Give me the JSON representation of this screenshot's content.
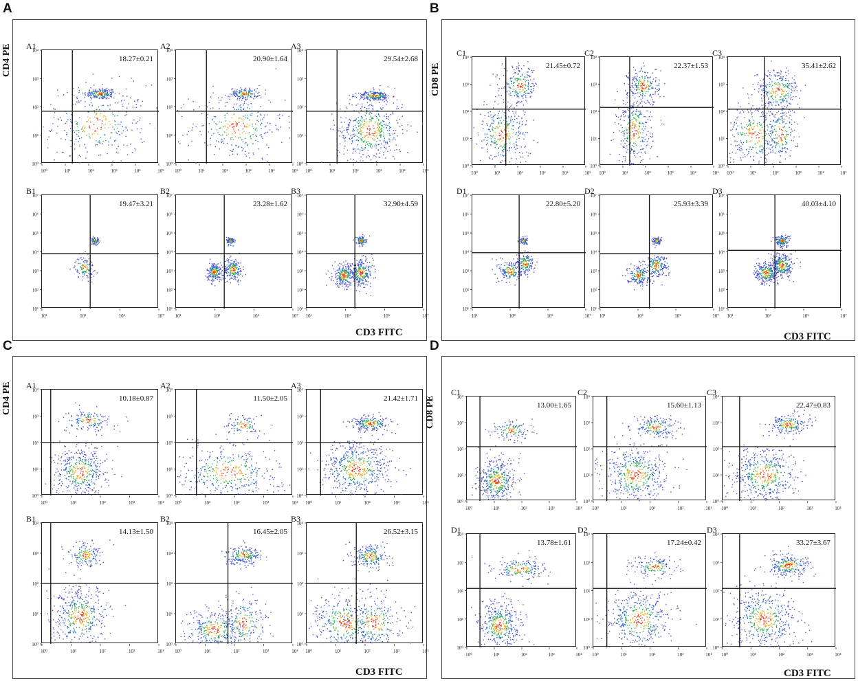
{
  "figure": {
    "panels": [
      {
        "letter": "A",
        "ylabel": "CD4 PE",
        "xlabel": "CD3 FITC",
        "scale": "small"
      },
      {
        "letter": "B",
        "ylabel": "CD8 PE",
        "xlabel": "CD3 FITC",
        "scale": "large"
      },
      {
        "letter": "C",
        "ylabel": "CD4 PE",
        "xlabel": "CD3 FITC",
        "scale": "small"
      },
      {
        "letter": "D",
        "ylabel": "CD8 PE",
        "xlabel": "CD3 FITC",
        "scale": "small"
      }
    ]
  },
  "chart_data": [
    {
      "panel": "A",
      "type": "scatter",
      "title": "A1",
      "xlabel": "CD3 FITC",
      "ylabel": "CD4 PE",
      "xlim": [
        1,
        100000
      ],
      "ylim": [
        1,
        10000
      ],
      "x_ticks": [
        "10⁰",
        "10¹",
        "10²",
        "10³",
        "10⁴",
        "10⁵"
      ],
      "y_ticks": [
        "10⁰",
        "10¹",
        "10²",
        "10³",
        "10⁴"
      ],
      "gate": {
        "x": 20,
        "y": 70
      },
      "quadrant_percent": "18.27±0.21",
      "clusters": [
        [
          300,
          300,
          0.35,
          0.1,
          170
        ],
        [
          200,
          25,
          1.1,
          0.7,
          320
        ]
      ]
    },
    {
      "panel": "A",
      "type": "scatter",
      "title": "A2",
      "xlabel": "CD3 FITC",
      "ylabel": "CD4 PE",
      "xlim": [
        1,
        100000
      ],
      "ylim": [
        1,
        10000
      ],
      "x_ticks": [
        "10⁰",
        "10¹",
        "10²",
        "10³",
        "10⁴",
        "10⁵"
      ],
      "y_ticks": [
        "10⁰",
        "10¹",
        "10²",
        "10³",
        "10⁴"
      ],
      "gate": {
        "x": 20,
        "y": 70
      },
      "quadrant_percent": "20.90±1.64",
      "clusters": [
        [
          800,
          300,
          0.3,
          0.1,
          140
        ],
        [
          400,
          20,
          1.0,
          0.6,
          300
        ]
      ]
    },
    {
      "panel": "A",
      "type": "scatter",
      "title": "A3",
      "xlabel": "CD3 FITC",
      "ylabel": "CD4 PE",
      "xlim": [
        1,
        100000
      ],
      "ylim": [
        1,
        10000
      ],
      "x_ticks": [
        "10⁰",
        "10¹",
        "10²",
        "10³",
        "10⁴",
        "10⁵"
      ],
      "y_ticks": [
        "10⁰",
        "10¹",
        "10²",
        "10³",
        "10⁴"
      ],
      "gate": {
        "x": 20,
        "y": 70
      },
      "quadrant_percent": "29.54±2.68",
      "clusters": [
        [
          800,
          250,
          0.35,
          0.08,
          220
        ],
        [
          500,
          15,
          0.7,
          0.6,
          480
        ]
      ]
    },
    {
      "panel": "A",
      "type": "scatter",
      "title": "B1",
      "xlabel": "CD3 FITC",
      "ylabel": "CD4 PE",
      "xlim": [
        10,
        10000000
      ],
      "ylim": [
        10,
        10000000
      ],
      "x_ticks": [
        "10¹",
        "10³",
        "10⁵",
        "10⁷"
      ],
      "y_ticks": [
        "10¹",
        "10²",
        "10³",
        "10⁴",
        "10⁵",
        "10⁶",
        "10⁷"
      ],
      "gate": {
        "x": 3000,
        "y": 8000
      },
      "quadrant_percent": "19.47±3.21",
      "clusters": [
        [
          5000,
          40000,
          0.1,
          0.1,
          70
        ],
        [
          1500,
          1500,
          0.25,
          0.3,
          110
        ]
      ]
    },
    {
      "panel": "A",
      "type": "scatter",
      "title": "B2",
      "xlabel": "CD3 FITC",
      "ylabel": "CD4 PE",
      "xlim": [
        10,
        10000000
      ],
      "ylim": [
        10,
        10000000
      ],
      "x_ticks": [
        "10¹",
        "10³",
        "10⁵",
        "10⁷"
      ],
      "y_ticks": [
        "10¹",
        "10²",
        "10³",
        "10⁴",
        "10⁵",
        "10⁶",
        "10⁷"
      ],
      "gate": {
        "x": 3000,
        "y": 8000
      },
      "quadrant_percent": "23.28±1.62",
      "clusters": [
        [
          6000,
          40000,
          0.1,
          0.1,
          90
        ],
        [
          900,
          900,
          0.2,
          0.25,
          200
        ],
        [
          8000,
          1200,
          0.25,
          0.3,
          200
        ]
      ]
    },
    {
      "panel": "A",
      "type": "scatter",
      "title": "B3",
      "xlabel": "CD3 FITC",
      "ylabel": "CD4 PE",
      "xlim": [
        10,
        10000000
      ],
      "ylim": [
        10,
        10000000
      ],
      "x_ticks": [
        "10¹",
        "10³",
        "10⁵",
        "10⁷"
      ],
      "y_ticks": [
        "10¹",
        "10²",
        "10³",
        "10⁴",
        "10⁵",
        "10⁶",
        "10⁷"
      ],
      "gate": {
        "x": 3000,
        "y": 8000
      },
      "quadrant_percent": "32.90±4.59",
      "clusters": [
        [
          6000,
          40000,
          0.12,
          0.12,
          120
        ],
        [
          800,
          600,
          0.3,
          0.3,
          260
        ],
        [
          6000,
          800,
          0.3,
          0.35,
          260
        ]
      ]
    },
    {
      "panel": "B",
      "type": "scatter",
      "title": "C1",
      "xlabel": "CD3 FITC",
      "ylabel": "CD8 PE",
      "xlim": [
        1,
        100000
      ],
      "ylim": [
        1,
        10000
      ],
      "x_ticks": [
        "10⁰",
        "10¹",
        "10²",
        "10³",
        "10⁴",
        "10⁵"
      ],
      "y_ticks": [
        "10⁰",
        "10¹",
        "10²",
        "10³",
        "10⁴"
      ],
      "gate": {
        "x": 30,
        "y": 120
      },
      "quadrant_percent": "21.45±0.72",
      "clusters": [
        [
          120,
          900,
          0.4,
          0.35,
          200
        ],
        [
          20,
          15,
          0.6,
          0.6,
          320
        ]
      ]
    },
    {
      "panel": "B",
      "type": "scatter",
      "title": "C2",
      "xlabel": "CD3 FITC",
      "ylabel": "CD8 PE",
      "xlim": [
        1,
        100000
      ],
      "ylim": [
        1,
        10000
      ],
      "x_ticks": [
        "10⁰",
        "10¹",
        "10²",
        "10³",
        "10⁴",
        "10⁵"
      ],
      "y_ticks": [
        "10⁰",
        "10¹",
        "10²",
        "10³",
        "10⁴"
      ],
      "gate": {
        "x": 20,
        "y": 140
      },
      "quadrant_percent": "22.37±1.53",
      "clusters": [
        [
          80,
          900,
          0.35,
          0.35,
          200
        ],
        [
          30,
          20,
          0.4,
          0.7,
          320
        ]
      ]
    },
    {
      "panel": "B",
      "type": "scatter",
      "title": "C3",
      "xlabel": "CD3 FITC",
      "ylabel": "CD8 PE",
      "xlim": [
        1,
        100000
      ],
      "ylim": [
        1,
        10000
      ],
      "x_ticks": [
        "10⁰",
        "10¹",
        "10²",
        "10³",
        "10⁴",
        "10⁵"
      ],
      "y_ticks": [
        "10⁰",
        "10¹",
        "10²",
        "10³",
        "10⁴"
      ],
      "gate": {
        "x": 40,
        "y": 120
      },
      "quadrant_percent": "35.41±2.62",
      "clusters": [
        [
          150,
          600,
          0.5,
          0.4,
          260
        ],
        [
          15,
          15,
          0.7,
          0.6,
          320
        ],
        [
          200,
          15,
          0.35,
          0.6,
          150
        ]
      ]
    },
    {
      "panel": "B",
      "type": "scatter",
      "title": "D1",
      "xlabel": "CD3 FITC",
      "ylabel": "CD8 PE",
      "xlim": [
        10,
        10000000
      ],
      "ylim": [
        10,
        10000000
      ],
      "x_ticks": [
        "10¹",
        "10³",
        "10⁵",
        "10⁷"
      ],
      "y_ticks": [
        "10¹",
        "10²",
        "10³",
        "10⁴",
        "10⁵",
        "10⁶",
        "10⁷"
      ],
      "gate": {
        "x": 3000,
        "y": 9000
      },
      "quadrant_percent": "22.80±5.20",
      "clusters": [
        [
          5000,
          40000,
          0.1,
          0.1,
          80
        ],
        [
          1000,
          1000,
          0.3,
          0.3,
          160
        ],
        [
          6000,
          2500,
          0.25,
          0.3,
          160
        ]
      ]
    },
    {
      "panel": "B",
      "type": "scatter",
      "title": "D2",
      "xlabel": "CD3 FITC",
      "ylabel": "CD8 PE",
      "xlim": [
        10,
        10000000
      ],
      "ylim": [
        10,
        10000000
      ],
      "x_ticks": [
        "10¹",
        "10³",
        "10⁵",
        "10⁷"
      ],
      "y_ticks": [
        "10¹",
        "10²",
        "10³",
        "10⁴",
        "10⁵",
        "10⁶",
        "10⁷"
      ],
      "gate": {
        "x": 4000,
        "y": 8000
      },
      "quadrant_percent": "25.93±3.39",
      "clusters": [
        [
          9000,
          40000,
          0.1,
          0.1,
          90
        ],
        [
          1000,
          600,
          0.3,
          0.25,
          180
        ],
        [
          9000,
          2000,
          0.3,
          0.3,
          180
        ]
      ]
    },
    {
      "panel": "B",
      "type": "scatter",
      "title": "D3",
      "xlabel": "CD3 FITC",
      "ylabel": "CD8 PE",
      "xlim": [
        10,
        10000000
      ],
      "ylim": [
        10,
        10000000
      ],
      "x_ticks": [
        "10¹",
        "10³",
        "10⁵",
        "10⁷"
      ],
      "y_ticks": [
        "10¹",
        "10²",
        "10³",
        "10⁴",
        "10⁵",
        "10⁶",
        "10⁷"
      ],
      "gate": {
        "x": 3000,
        "y": 12000
      },
      "quadrant_percent": "40.03±4.10",
      "clusters": [
        [
          7000,
          40000,
          0.2,
          0.15,
          150
        ],
        [
          1000,
          800,
          0.3,
          0.3,
          250
        ],
        [
          7000,
          2000,
          0.3,
          0.35,
          260
        ]
      ]
    },
    {
      "panel": "C",
      "type": "scatter",
      "title": "A1",
      "xlabel": "CD3 FITC",
      "ylabel": "CD4 PE",
      "xlim": [
        1,
        10000
      ],
      "ylim": [
        1,
        10000
      ],
      "x_ticks": [
        "10⁰",
        "10¹",
        "10²",
        "10³",
        "10⁴"
      ],
      "y_ticks": [
        "10⁰",
        "10¹",
        "10²",
        "10³",
        "10⁴"
      ],
      "gate": {
        "x": 2,
        "y": 100
      },
      "quadrant_percent": "10.18±0.87",
      "clusters": [
        [
          40,
          700,
          0.4,
          0.2,
          140
        ],
        [
          20,
          8,
          0.45,
          0.5,
          420
        ]
      ]
    },
    {
      "panel": "C",
      "type": "scatter",
      "title": "A2",
      "xlabel": "CD3 FITC",
      "ylabel": "CD4 PE",
      "xlim": [
        1,
        10000
      ],
      "ylim": [
        1,
        10000
      ],
      "x_ticks": [
        "10⁰",
        "10¹",
        "10²",
        "10³",
        "10⁴"
      ],
      "y_ticks": [
        "10⁰",
        "10¹",
        "10²",
        "10³",
        "10⁴"
      ],
      "gate": {
        "x": 5,
        "y": 100
      },
      "quadrant_percent": "11.50±2.05",
      "clusters": [
        [
          200,
          450,
          0.3,
          0.2,
          90
        ],
        [
          60,
          8,
          0.9,
          0.55,
          400
        ]
      ]
    },
    {
      "panel": "C",
      "type": "scatter",
      "title": "A3",
      "xlabel": "CD3 FITC",
      "ylabel": "CD4 PE",
      "xlim": [
        1,
        10000
      ],
      "ylim": [
        1,
        10000
      ],
      "x_ticks": [
        "10⁰",
        "10¹",
        "10²",
        "10³",
        "10⁴"
      ],
      "y_ticks": [
        "10⁰",
        "10¹",
        "10²",
        "10³",
        "10⁴"
      ],
      "gate": {
        "x": 3,
        "y": 100
      },
      "quadrant_percent": "21.42±1.71",
      "clusters": [
        [
          150,
          550,
          0.35,
          0.15,
          200
        ],
        [
          50,
          10,
          0.6,
          0.55,
          520
        ]
      ]
    },
    {
      "panel": "C",
      "type": "scatter",
      "title": "B1",
      "xlabel": "CD3 FITC",
      "ylabel": "CD4 PE",
      "xlim": [
        1,
        10000
      ],
      "ylim": [
        1,
        10000
      ],
      "x_ticks": [
        "10⁰",
        "10¹",
        "10²",
        "10³",
        "10⁴"
      ],
      "y_ticks": [
        "10⁰",
        "10¹",
        "10²",
        "10³",
        "10⁴"
      ],
      "gate": {
        "x": 2,
        "y": 100
      },
      "quadrant_percent": "14.13±1.50",
      "clusters": [
        [
          30,
          900,
          0.3,
          0.2,
          150
        ],
        [
          20,
          8,
          0.5,
          0.5,
          420
        ]
      ]
    },
    {
      "panel": "C",
      "type": "scatter",
      "title": "B2",
      "xlabel": "CD3 FITC",
      "ylabel": "CD4 PE",
      "xlim": [
        1,
        10000
      ],
      "ylim": [
        1,
        10000
      ],
      "x_ticks": [
        "10⁰",
        "10¹",
        "10²",
        "10³",
        "10⁴"
      ],
      "y_ticks": [
        "10⁰",
        "10¹",
        "10²",
        "10³",
        "10⁴"
      ],
      "gate": {
        "x": 60,
        "y": 100
      },
      "quadrant_percent": "16.45±2.05",
      "clusters": [
        [
          200,
          900,
          0.3,
          0.15,
          200
        ],
        [
          20,
          3,
          0.5,
          0.35,
          300
        ],
        [
          200,
          5,
          0.4,
          0.45,
          200
        ]
      ]
    },
    {
      "panel": "C",
      "type": "scatter",
      "title": "B3",
      "xlabel": "CD3 FITC",
      "ylabel": "CD4 PE",
      "xlim": [
        1,
        10000
      ],
      "ylim": [
        1,
        10000
      ],
      "x_ticks": [
        "10⁰",
        "10¹",
        "10²",
        "10³",
        "10⁴"
      ],
      "y_ticks": [
        "10⁰",
        "10¹",
        "10²",
        "10³",
        "10⁴"
      ],
      "gate": {
        "x": 50,
        "y": 100
      },
      "quadrant_percent": "26.52±3.15",
      "clusters": [
        [
          150,
          800,
          0.3,
          0.2,
          200
        ],
        [
          20,
          5,
          0.6,
          0.5,
          350
        ],
        [
          200,
          5,
          0.5,
          0.5,
          250
        ]
      ]
    },
    {
      "panel": "D",
      "type": "scatter",
      "title": "C1",
      "xlabel": "CD3 FITC",
      "ylabel": "CD8 PE",
      "xlim": [
        1,
        10000
      ],
      "ylim": [
        1,
        10000
      ],
      "x_ticks": [
        "10⁰",
        "10¹",
        "10²",
        "10³",
        "10⁴"
      ],
      "y_ticks": [
        "10⁰",
        "10¹",
        "10²",
        "10³",
        "10⁴"
      ],
      "gate": {
        "x": 3,
        "y": 120
      },
      "quadrant_percent": "13.00±1.65",
      "clusters": [
        [
          40,
          500,
          0.35,
          0.2,
          120
        ],
        [
          12,
          6,
          0.35,
          0.45,
          400
        ]
      ]
    },
    {
      "panel": "D",
      "type": "scatter",
      "title": "C2",
      "xlabel": "CD3 FITC",
      "ylabel": "CD8 PE",
      "xlim": [
        1,
        10000
      ],
      "ylim": [
        1,
        10000
      ],
      "x_ticks": [
        "10⁰",
        "10¹",
        "10²",
        "10³",
        "10⁴"
      ],
      "y_ticks": [
        "10⁰",
        "10¹",
        "10²",
        "10³",
        "10⁴"
      ],
      "gate": {
        "x": 3,
        "y": 120
      },
      "quadrant_percent": "15.60±1.13",
      "clusters": [
        [
          150,
          700,
          0.4,
          0.2,
          180
        ],
        [
          30,
          10,
          0.6,
          0.55,
          450
        ]
      ]
    },
    {
      "panel": "D",
      "type": "scatter",
      "title": "C3",
      "xlabel": "CD3 FITC",
      "ylabel": "CD8 PE",
      "xlim": [
        1,
        10000
      ],
      "ylim": [
        1,
        10000
      ],
      "x_ticks": [
        "10⁰",
        "10¹",
        "10²",
        "10³",
        "10⁴"
      ],
      "y_ticks": [
        "10⁰",
        "10¹",
        "10²",
        "10³",
        "10⁴"
      ],
      "gate": {
        "x": 4,
        "y": 120
      },
      "quadrant_percent": "22.47±0.83",
      "clusters": [
        [
          200,
          900,
          0.35,
          0.2,
          200
        ],
        [
          30,
          10,
          0.6,
          0.55,
          480
        ]
      ]
    },
    {
      "panel": "D",
      "type": "scatter",
      "title": "D1",
      "xlabel": "CD3 FITC",
      "ylabel": "CD8 PE",
      "xlim": [
        1,
        10000
      ],
      "ylim": [
        1,
        10000
      ],
      "x_ticks": [
        "10⁰",
        "10¹",
        "10²",
        "10³",
        "10⁴"
      ],
      "y_ticks": [
        "10⁰",
        "10¹",
        "10²",
        "10³",
        "10⁴"
      ],
      "gate": {
        "x": 3,
        "y": 120
      },
      "quadrant_percent": "13.78±1.61",
      "clusters": [
        [
          80,
          600,
          0.5,
          0.2,
          180
        ],
        [
          15,
          6,
          0.4,
          0.45,
          400
        ]
      ]
    },
    {
      "panel": "D",
      "type": "scatter",
      "title": "D2",
      "xlabel": "CD3 FITC",
      "ylabel": "CD8 PE",
      "xlim": [
        1,
        10000
      ],
      "ylim": [
        1,
        10000
      ],
      "x_ticks": [
        "10⁰",
        "10¹",
        "10²",
        "10³",
        "10⁴"
      ],
      "y_ticks": [
        "10⁰",
        "10¹",
        "10²",
        "10³",
        "10⁴"
      ],
      "gate": {
        "x": 3,
        "y": 120
      },
      "quadrant_percent": "17.24±0.42",
      "clusters": [
        [
          150,
          700,
          0.4,
          0.2,
          140
        ],
        [
          40,
          10,
          0.6,
          0.55,
          420
        ]
      ]
    },
    {
      "panel": "D",
      "type": "scatter",
      "title": "D3",
      "xlabel": "CD3 FITC",
      "ylabel": "CD8 PE",
      "xlim": [
        1,
        10000
      ],
      "ylim": [
        1,
        10000
      ],
      "x_ticks": [
        "10⁰",
        "10¹",
        "10²",
        "10³",
        "10⁴"
      ],
      "y_ticks": [
        "10⁰",
        "10¹",
        "10²",
        "10³",
        "10⁴"
      ],
      "gate": {
        "x": 4,
        "y": 120
      },
      "quadrant_percent": "33.27±3.67",
      "clusters": [
        [
          200,
          800,
          0.4,
          0.2,
          250
        ],
        [
          30,
          10,
          0.6,
          0.55,
          480
        ]
      ]
    }
  ]
}
